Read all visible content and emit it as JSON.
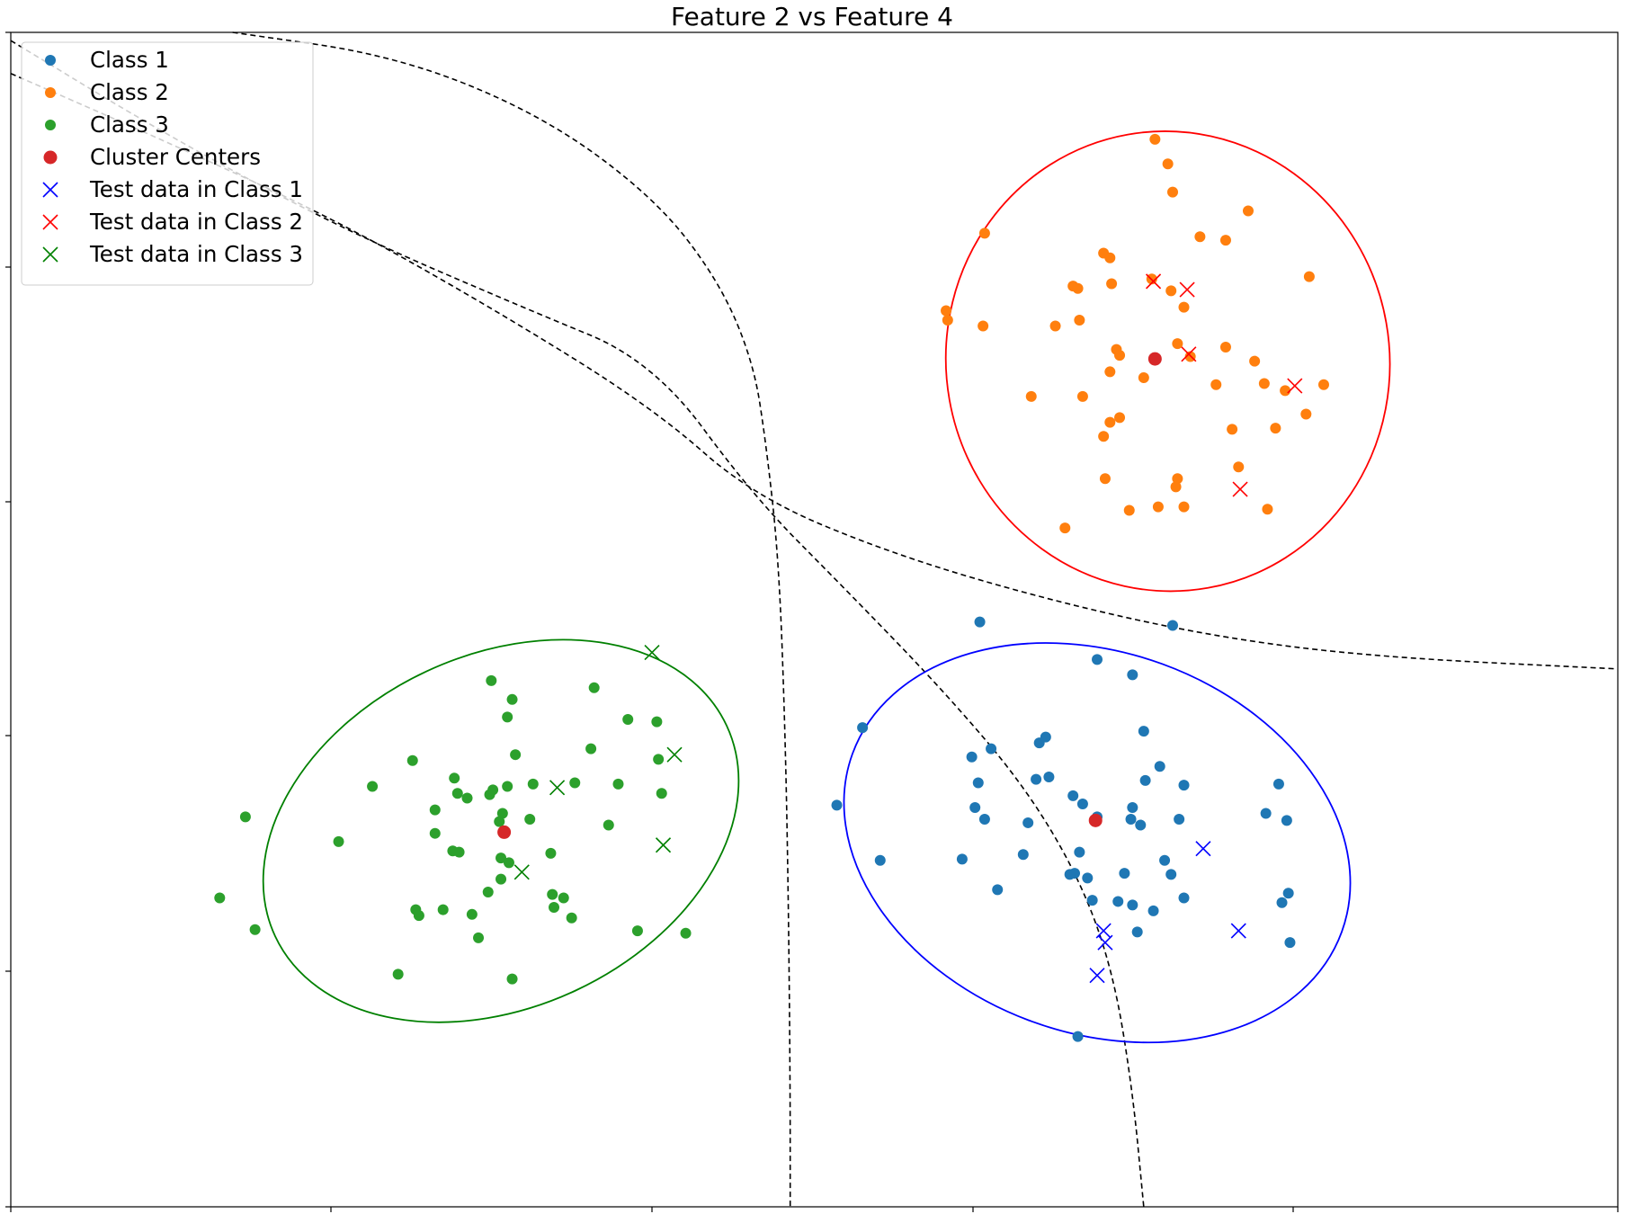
{
  "chart_data": {
    "type": "scatter",
    "title": "Feature 2 vs Feature 4",
    "xlabel": "",
    "ylabel": "",
    "xlim": [
      0,
      100
    ],
    "ylim": [
      0,
      100
    ],
    "x_tick_labels_visible": false,
    "y_tick_labels_visible": false,
    "grid": false,
    "legend_placement": "top-left",
    "series": [
      {
        "name": "Class 1",
        "marker": "circle",
        "color": "#1f77b4",
        "points": [
          [
            60.3,
            49.8
          ],
          [
            72.3,
            49.5
          ],
          [
            67.6,
            46.6
          ],
          [
            69.8,
            45.3
          ],
          [
            53.0,
            40.8
          ],
          [
            59.8,
            38.3
          ],
          [
            61.0,
            39.0
          ],
          [
            64.0,
            39.5
          ],
          [
            64.4,
            40.0
          ],
          [
            70.5,
            40.5
          ],
          [
            60.2,
            36.1
          ],
          [
            63.8,
            36.4
          ],
          [
            64.6,
            36.6
          ],
          [
            66.1,
            35.0
          ],
          [
            69.8,
            34.0
          ],
          [
            71.5,
            37.5
          ],
          [
            70.6,
            36.3
          ],
          [
            73.0,
            35.9
          ],
          [
            78.9,
            36.0
          ],
          [
            60.0,
            34.0
          ],
          [
            60.6,
            33.0
          ],
          [
            63.3,
            32.7
          ],
          [
            66.7,
            34.3
          ],
          [
            67.6,
            33.2
          ],
          [
            69.7,
            33.0
          ],
          [
            70.3,
            32.5
          ],
          [
            72.7,
            33.0
          ],
          [
            78.1,
            33.5
          ],
          [
            79.4,
            32.9
          ],
          [
            51.4,
            34.2
          ],
          [
            54.1,
            29.5
          ],
          [
            59.2,
            29.6
          ],
          [
            63.0,
            30.0
          ],
          [
            66.5,
            30.2
          ],
          [
            71.8,
            29.5
          ],
          [
            72.2,
            28.3
          ],
          [
            65.9,
            28.3
          ],
          [
            66.2,
            28.4
          ],
          [
            67.0,
            28.0
          ],
          [
            69.3,
            28.4
          ],
          [
            61.4,
            27.0
          ],
          [
            67.3,
            26.1
          ],
          [
            68.9,
            26.0
          ],
          [
            69.8,
            25.7
          ],
          [
            73.0,
            26.3
          ],
          [
            79.1,
            25.9
          ],
          [
            79.5,
            26.7
          ],
          [
            70.1,
            23.4
          ],
          [
            71.1,
            25.2
          ],
          [
            79.6,
            22.5
          ],
          [
            66.4,
            14.5
          ]
        ]
      },
      {
        "name": "Class 2",
        "marker": "circle",
        "color": "#ff7f0e",
        "points": [
          [
            71.2,
            90.9
          ],
          [
            72.0,
            88.8
          ],
          [
            72.3,
            86.4
          ],
          [
            77.0,
            84.8
          ],
          [
            60.6,
            82.9
          ],
          [
            74.0,
            82.6
          ],
          [
            75.6,
            82.3
          ],
          [
            68.0,
            81.2
          ],
          [
            68.4,
            80.8
          ],
          [
            80.8,
            79.2
          ],
          [
            66.1,
            78.4
          ],
          [
            66.4,
            78.2
          ],
          [
            68.5,
            78.6
          ],
          [
            71.0,
            79.0
          ],
          [
            72.2,
            78.0
          ],
          [
            73.0,
            76.6
          ],
          [
            58.2,
            76.3
          ],
          [
            58.3,
            75.5
          ],
          [
            60.5,
            75.0
          ],
          [
            65.0,
            75.0
          ],
          [
            66.5,
            75.5
          ],
          [
            72.6,
            73.5
          ],
          [
            75.6,
            73.2
          ],
          [
            68.8,
            73.0
          ],
          [
            69.0,
            72.5
          ],
          [
            73.4,
            72.4
          ],
          [
            77.4,
            72.0
          ],
          [
            68.4,
            71.1
          ],
          [
            70.5,
            70.6
          ],
          [
            63.5,
            69.0
          ],
          [
            66.7,
            69.0
          ],
          [
            75.0,
            70.0
          ],
          [
            78.0,
            70.1
          ],
          [
            79.3,
            69.5
          ],
          [
            81.7,
            70.0
          ],
          [
            68.4,
            66.8
          ],
          [
            69.0,
            67.2
          ],
          [
            68.0,
            65.6
          ],
          [
            76.0,
            66.2
          ],
          [
            78.7,
            66.3
          ],
          [
            80.6,
            67.5
          ],
          [
            76.4,
            63.0
          ],
          [
            68.1,
            62.0
          ],
          [
            72.6,
            62.0
          ],
          [
            72.5,
            61.3
          ],
          [
            65.6,
            57.8
          ],
          [
            69.6,
            59.3
          ],
          [
            71.4,
            59.6
          ],
          [
            73.0,
            59.6
          ],
          [
            78.2,
            59.4
          ]
        ]
      },
      {
        "name": "Class 3",
        "marker": "circle",
        "color": "#2ca02c",
        "points": [
          [
            29.9,
            44.8
          ],
          [
            31.2,
            43.2
          ],
          [
            36.3,
            44.2
          ],
          [
            30.9,
            41.7
          ],
          [
            38.4,
            41.5
          ],
          [
            40.2,
            41.3
          ],
          [
            36.1,
            39.0
          ],
          [
            31.4,
            38.5
          ],
          [
            40.3,
            38.1
          ],
          [
            25.0,
            38.0
          ],
          [
            27.6,
            36.5
          ],
          [
            32.5,
            36.0
          ],
          [
            35.1,
            36.1
          ],
          [
            37.8,
            36.0
          ],
          [
            22.5,
            35.8
          ],
          [
            27.8,
            35.2
          ],
          [
            29.8,
            35.1
          ],
          [
            30.0,
            35.5
          ],
          [
            30.9,
            35.8
          ],
          [
            40.5,
            35.2
          ],
          [
            28.4,
            34.8
          ],
          [
            26.4,
            33.8
          ],
          [
            30.6,
            33.5
          ],
          [
            14.6,
            33.2
          ],
          [
            32.3,
            33.0
          ],
          [
            26.4,
            31.8
          ],
          [
            20.4,
            31.1
          ],
          [
            37.2,
            32.5
          ],
          [
            30.4,
            32.8
          ],
          [
            27.5,
            30.3
          ],
          [
            27.9,
            30.2
          ],
          [
            33.6,
            30.1
          ],
          [
            30.5,
            29.7
          ],
          [
            31.0,
            29.3
          ],
          [
            30.5,
            27.9
          ],
          [
            29.7,
            26.8
          ],
          [
            33.7,
            26.6
          ],
          [
            34.4,
            26.3
          ],
          [
            13.0,
            26.3
          ],
          [
            33.8,
            25.5
          ],
          [
            25.2,
            25.3
          ],
          [
            26.9,
            25.3
          ],
          [
            28.7,
            24.9
          ],
          [
            25.4,
            24.8
          ],
          [
            15.2,
            23.6
          ],
          [
            34.9,
            24.6
          ],
          [
            39.0,
            23.5
          ],
          [
            42.0,
            23.3
          ],
          [
            29.1,
            22.9
          ],
          [
            24.1,
            19.8
          ],
          [
            31.2,
            19.4
          ]
        ]
      },
      {
        "name": "Cluster Centers",
        "marker": "circle",
        "color": "#d62728",
        "points": [
          [
            71.2,
            72.2
          ],
          [
            67.5,
            32.9
          ],
          [
            30.7,
            31.9
          ]
        ]
      },
      {
        "name": "Test data in Class 1",
        "marker": "x",
        "color": "#0000ff",
        "points": [
          [
            74.2,
            30.5
          ],
          [
            68.0,
            23.5
          ],
          [
            68.1,
            22.5
          ],
          [
            76.4,
            23.5
          ],
          [
            67.6,
            19.7
          ]
        ]
      },
      {
        "name": "Test data in Class 2",
        "marker": "x",
        "color": "#ff0000",
        "points": [
          [
            71.1,
            78.8
          ],
          [
            73.2,
            78.1
          ],
          [
            73.3,
            72.6
          ],
          [
            79.9,
            69.9
          ],
          [
            76.5,
            61.1
          ]
        ]
      },
      {
        "name": "Test data in Class 3",
        "marker": "x",
        "color": "#008000",
        "points": [
          [
            39.9,
            47.2
          ],
          [
            41.3,
            38.5
          ],
          [
            34.0,
            35.7
          ],
          [
            40.6,
            30.8
          ],
          [
            31.8,
            28.5
          ]
        ]
      }
    ],
    "ellipses": [
      {
        "color": "#ff0000",
        "center": [
          72.0,
          72.0
        ],
        "rx": 13.8,
        "ry": 19.6,
        "rotation_deg": -10
      },
      {
        "color": "#0000ff",
        "center": [
          67.6,
          31.0
        ],
        "rx": 16.2,
        "ry": 16.2,
        "rotation_deg": 20
      },
      {
        "color": "#008000",
        "center": [
          30.5,
          32.0
        ],
        "rx": 15.5,
        "ry": 15.0,
        "rotation_deg": -25
      }
    ],
    "decision_boundaries": [
      {
        "style": "dashed",
        "color": "#000000",
        "points": [
          [
            13.8,
            100.0
          ],
          [
            24.0,
            98.0
          ],
          [
            33.0,
            93.0
          ],
          [
            40.0,
            86.0
          ],
          [
            44.0,
            79.0
          ],
          [
            46.2,
            72.0
          ],
          [
            47.0,
            65.0
          ],
          [
            47.8,
            55.0
          ],
          [
            48.2,
            40.0
          ],
          [
            48.4,
            25.0
          ],
          [
            48.5,
            10.0
          ],
          [
            48.5,
            0.0
          ]
        ]
      },
      {
        "style": "dashed",
        "color": "#000000",
        "points": [
          [
            0.0,
            99.3
          ],
          [
            10.0,
            91.0
          ],
          [
            21.0,
            83.0
          ],
          [
            32.0,
            76.5
          ],
          [
            40.0,
            72.0
          ],
          [
            46.2,
            60.5
          ],
          [
            52.0,
            52.5
          ],
          [
            58.0,
            44.0
          ],
          [
            63.0,
            36.0
          ],
          [
            66.5,
            28.0
          ],
          [
            68.6,
            20.0
          ],
          [
            69.8,
            10.0
          ],
          [
            70.5,
            0.0
          ]
        ]
      },
      {
        "style": "dashed",
        "color": "#000000",
        "points": [
          [
            0.0,
            96.5
          ],
          [
            10.0,
            90.5
          ],
          [
            20.0,
            84.2
          ],
          [
            30.0,
            76.5
          ],
          [
            40.0,
            68.0
          ],
          [
            46.2,
            60.5
          ],
          [
            55.0,
            55.5
          ],
          [
            65.0,
            51.5
          ],
          [
            75.0,
            48.5
          ],
          [
            85.0,
            46.8
          ],
          [
            100.0,
            45.8
          ]
        ]
      }
    ]
  }
}
